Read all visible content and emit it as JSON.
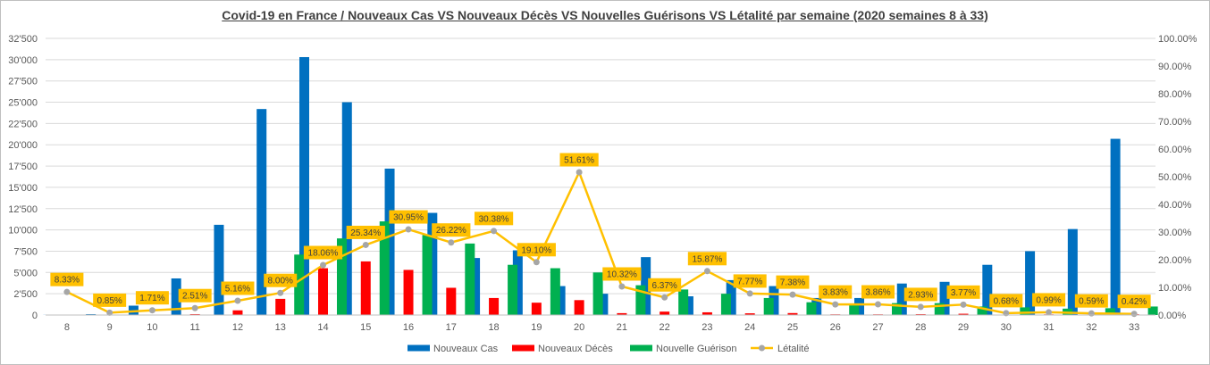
{
  "chart_data": {
    "type": "bar",
    "title": "Covid-19 en France / Nouveaux Cas VS Nouveaux Décès VS Nouvelles Guérisons VS Létalité par semaine (2020 semaines 8 à 33)",
    "categories": [
      "8",
      "9",
      "10",
      "11",
      "12",
      "13",
      "14",
      "15",
      "16",
      "17",
      "18",
      "19",
      "20",
      "21",
      "22",
      "23",
      "24",
      "25",
      "26",
      "27",
      "28",
      "29",
      "30",
      "31",
      "32",
      "33"
    ],
    "y_left": {
      "range": [
        0,
        32500
      ],
      "ticks": [
        0,
        2500,
        5000,
        7500,
        10000,
        12500,
        15000,
        17500,
        20000,
        22500,
        25000,
        27500,
        30000,
        32500
      ],
      "tick_labels": [
        "0",
        "2'500",
        "5'000",
        "7'500",
        "10'000",
        "12'500",
        "15'000",
        "17'500",
        "20'000",
        "22'500",
        "25'000",
        "27'500",
        "30'000",
        "32'500"
      ]
    },
    "y_right": {
      "range": [
        0,
        100
      ],
      "ticks": [
        0,
        10,
        20,
        30,
        40,
        50,
        60,
        70,
        80,
        90,
        100
      ],
      "tick_labels": [
        "0.00%",
        "10.00%",
        "20.00%",
        "30.00%",
        "40.00%",
        "50.00%",
        "60.00%",
        "70.00%",
        "80.00%",
        "90.00%",
        "100.00%"
      ]
    },
    "grid": true,
    "legend_position": "bottom",
    "series": [
      {
        "name": "Nouveaux Cas",
        "color": "#0070c0",
        "axis": "left",
        "kind": "bar",
        "values": [
          12,
          100,
          1100,
          4300,
          10600,
          24200,
          30300,
          25000,
          17200,
          12000,
          6700,
          7600,
          3400,
          2500,
          6800,
          2200,
          4100,
          3400,
          2000,
          2000,
          3700,
          3900,
          5900,
          7500,
          10100,
          20700
        ]
      },
      {
        "name": "Nouveaux Décès",
        "color": "#ff0000",
        "axis": "left",
        "kind": "bar",
        "values": [
          0,
          1,
          20,
          100,
          550,
          1900,
          5500,
          6300,
          5300,
          3200,
          2000,
          1450,
          1750,
          220,
          400,
          320,
          200,
          230,
          80,
          80,
          100,
          150,
          50,
          75,
          60,
          90
        ]
      },
      {
        "name": "Nouvelle Guérison",
        "color": "#00b050",
        "axis": "left",
        "kind": "bar",
        "values": [
          0,
          0,
          0,
          0,
          0,
          7100,
          9000,
          11000,
          9400,
          8400,
          5900,
          5500,
          5000,
          3500,
          3000,
          2500,
          2000,
          1500,
          1300,
          1400,
          1400,
          1000,
          900,
          750,
          800,
          1000
        ]
      },
      {
        "name": "Létalité",
        "color": "#ffc000",
        "axis": "right",
        "kind": "line",
        "values": [
          8.33,
          0.85,
          1.71,
          2.51,
          5.16,
          8.0,
          18.06,
          25.34,
          30.95,
          26.22,
          30.38,
          19.1,
          51.61,
          10.32,
          6.37,
          15.87,
          7.77,
          7.38,
          3.83,
          3.86,
          2.93,
          3.77,
          0.68,
          0.99,
          0.59,
          0.42
        ],
        "labels": [
          "8.33%",
          "0.85%",
          "1.71%",
          "2.51%",
          "5.16%",
          "8.00%",
          "18.06%",
          "25.34%",
          "30.95%",
          "26.22%",
          "30.38%",
          "19.10%",
          "51.61%",
          "10.32%",
          "6.37%",
          "15.87%",
          "7.77%",
          "7.38%",
          "3.83%",
          "3.86%",
          "2.93%",
          "3.77%",
          "0.68%",
          "0.99%",
          "0.59%",
          "0.42%"
        ]
      }
    ]
  }
}
